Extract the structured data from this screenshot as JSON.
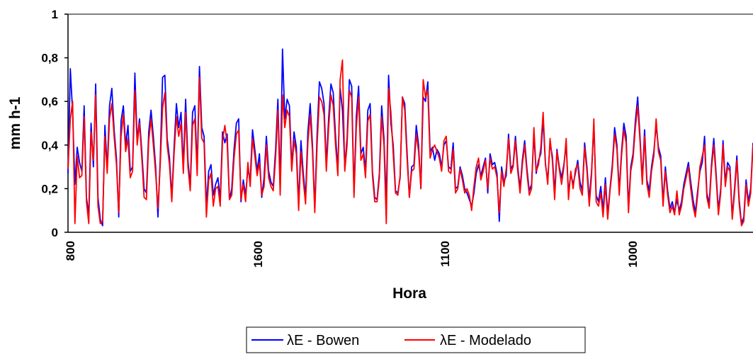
{
  "chart_data": {
    "type": "line",
    "title": "",
    "xlabel": "Hora",
    "ylabel": "mm h-1",
    "ylim": [
      0,
      1
    ],
    "y_ticks": [
      "0",
      "0,2",
      "0,4",
      "0,6",
      "0,8",
      "1"
    ],
    "x_tick_labels": [
      "800",
      "1600",
      "1100",
      "1000"
    ],
    "grid": false,
    "legend": "bottom-center",
    "colors": {
      "bowen": "#0000ff",
      "modelado": "#ff0000"
    },
    "series": [
      {
        "name": "λE - Bowen",
        "values": [
          0.27,
          0.75,
          0.55,
          0.22,
          0.39,
          0.32,
          0.28,
          0.58,
          0.16,
          0.08,
          0.5,
          0.3,
          0.68,
          0.16,
          0.06,
          0.03,
          0.49,
          0.29,
          0.58,
          0.66,
          0.47,
          0.34,
          0.07,
          0.51,
          0.58,
          0.4,
          0.49,
          0.28,
          0.3,
          0.73,
          0.42,
          0.52,
          0.37,
          0.2,
          0.18,
          0.46,
          0.56,
          0.44,
          0.3,
          0.07,
          0.34,
          0.71,
          0.72,
          0.43,
          0.34,
          0.16,
          0.39,
          0.59,
          0.48,
          0.55,
          0.3,
          0.61,
          0.33,
          0.21,
          0.55,
          0.58,
          0.29,
          0.76,
          0.48,
          0.44,
          0.12,
          0.28,
          0.31,
          0.17,
          0.22,
          0.25,
          0.15,
          0.46,
          0.41,
          0.45,
          0.15,
          0.2,
          0.38,
          0.5,
          0.52,
          0.14,
          0.24,
          0.17,
          0.29,
          0.24,
          0.47,
          0.38,
          0.28,
          0.36,
          0.16,
          0.25,
          0.44,
          0.28,
          0.23,
          0.21,
          0.38,
          0.61,
          0.21,
          0.84,
          0.52,
          0.61,
          0.58,
          0.3,
          0.46,
          0.39,
          0.13,
          0.42,
          0.27,
          0.16,
          0.46,
          0.59,
          0.4,
          0.11,
          0.45,
          0.69,
          0.66,
          0.59,
          0.31,
          0.52,
          0.68,
          0.64,
          0.44,
          0.29,
          0.66,
          0.56,
          0.3,
          0.43,
          0.7,
          0.67,
          0.18,
          0.53,
          0.67,
          0.36,
          0.39,
          0.28,
          0.56,
          0.59,
          0.28,
          0.16,
          0.15,
          0.27,
          0.58,
          0.43,
          0.13,
          0.72,
          0.5,
          0.4,
          0.19,
          0.18,
          0.25,
          0.62,
          0.59,
          0.37,
          0.16,
          0.3,
          0.31,
          0.49,
          0.4,
          0.2,
          0.62,
          0.6,
          0.69,
          0.37,
          0.39,
          0.33,
          0.38,
          0.36,
          0.3,
          0.4,
          0.42,
          0.3,
          0.29,
          0.41,
          0.2,
          0.21,
          0.3,
          0.26,
          0.2,
          0.18,
          0.15,
          0.12,
          0.18,
          0.27,
          0.31,
          0.26,
          0.3,
          0.34,
          0.18,
          0.36,
          0.31,
          0.32,
          0.27,
          0.05,
          0.3,
          0.23,
          0.26,
          0.45,
          0.29,
          0.31,
          0.44,
          0.3,
          0.2,
          0.33,
          0.42,
          0.29,
          0.19,
          0.22,
          0.45,
          0.27,
          0.33,
          0.36,
          0.52,
          0.31,
          0.24,
          0.41,
          0.35,
          0.18,
          0.38,
          0.3,
          0.25,
          0.31,
          0.4,
          0.18,
          0.27,
          0.22,
          0.27,
          0.33,
          0.23,
          0.19,
          0.41,
          0.3,
          0.15,
          0.28,
          0.49,
          0.17,
          0.14,
          0.21,
          0.1,
          0.25,
          0.08,
          0.2,
          0.31,
          0.48,
          0.4,
          0.19,
          0.37,
          0.5,
          0.44,
          0.11,
          0.3,
          0.36,
          0.51,
          0.62,
          0.44,
          0.24,
          0.47,
          0.24,
          0.19,
          0.3,
          0.37,
          0.49,
          0.39,
          0.35,
          0.14,
          0.3,
          0.19,
          0.11,
          0.14,
          0.09,
          0.15,
          0.1,
          0.14,
          0.22,
          0.27,
          0.32,
          0.23,
          0.15,
          0.09,
          0.19,
          0.28,
          0.32,
          0.44,
          0.18,
          0.13,
          0.31,
          0.43,
          0.27,
          0.1,
          0.2,
          0.42,
          0.23,
          0.32,
          0.3,
          0.07,
          0.2,
          0.35,
          0.15,
          0.04,
          0.07,
          0.24,
          0.14,
          0.2,
          0.41
        ]
      },
      {
        "name": "λE - Modelado",
        "values": [
          0.29,
          0.52,
          0.6,
          0.04,
          0.35,
          0.25,
          0.26,
          0.53,
          0.14,
          0.04,
          0.46,
          0.33,
          0.63,
          0.12,
          0.04,
          0.05,
          0.44,
          0.27,
          0.52,
          0.59,
          0.44,
          0.31,
          0.09,
          0.44,
          0.54,
          0.37,
          0.43,
          0.25,
          0.28,
          0.65,
          0.4,
          0.5,
          0.34,
          0.16,
          0.15,
          0.42,
          0.52,
          0.4,
          0.27,
          0.11,
          0.31,
          0.57,
          0.64,
          0.4,
          0.31,
          0.14,
          0.36,
          0.53,
          0.44,
          0.5,
          0.27,
          0.55,
          0.3,
          0.19,
          0.49,
          0.52,
          0.26,
          0.71,
          0.43,
          0.41,
          0.07,
          0.24,
          0.27,
          0.12,
          0.2,
          0.21,
          0.12,
          0.42,
          0.49,
          0.41,
          0.15,
          0.17,
          0.34,
          0.45,
          0.47,
          0.15,
          0.22,
          0.14,
          0.32,
          0.21,
          0.43,
          0.35,
          0.26,
          0.32,
          0.17,
          0.21,
          0.4,
          0.25,
          0.21,
          0.19,
          0.34,
          0.56,
          0.17,
          0.63,
          0.48,
          0.56,
          0.53,
          0.28,
          0.42,
          0.36,
          0.1,
          0.37,
          0.24,
          0.13,
          0.41,
          0.54,
          0.37,
          0.09,
          0.4,
          0.62,
          0.6,
          0.54,
          0.28,
          0.48,
          0.63,
          0.58,
          0.4,
          0.26,
          0.7,
          0.79,
          0.28,
          0.4,
          0.65,
          0.62,
          0.16,
          0.48,
          0.62,
          0.33,
          0.36,
          0.25,
          0.51,
          0.54,
          0.26,
          0.14,
          0.14,
          0.25,
          0.53,
          0.4,
          0.04,
          0.66,
          0.55,
          0.36,
          0.18,
          0.17,
          0.26,
          0.62,
          0.56,
          0.34,
          0.16,
          0.28,
          0.29,
          0.45,
          0.37,
          0.2,
          0.7,
          0.62,
          0.65,
          0.34,
          0.38,
          0.4,
          0.37,
          0.34,
          0.28,
          0.42,
          0.44,
          0.28,
          0.27,
          0.38,
          0.18,
          0.2,
          0.29,
          0.24,
          0.18,
          0.2,
          0.17,
          0.1,
          0.21,
          0.3,
          0.34,
          0.24,
          0.28,
          0.33,
          0.2,
          0.34,
          0.29,
          0.3,
          0.25,
          0.09,
          0.28,
          0.21,
          0.29,
          0.43,
          0.27,
          0.3,
          0.42,
          0.28,
          0.18,
          0.31,
          0.4,
          0.27,
          0.17,
          0.2,
          0.48,
          0.28,
          0.31,
          0.39,
          0.55,
          0.32,
          0.22,
          0.43,
          0.33,
          0.15,
          0.37,
          0.29,
          0.22,
          0.3,
          0.43,
          0.15,
          0.28,
          0.2,
          0.29,
          0.31,
          0.2,
          0.17,
          0.39,
          0.28,
          0.12,
          0.26,
          0.52,
          0.14,
          0.12,
          0.18,
          0.07,
          0.22,
          0.06,
          0.19,
          0.29,
          0.45,
          0.38,
          0.17,
          0.35,
          0.47,
          0.41,
          0.09,
          0.28,
          0.34,
          0.48,
          0.58,
          0.42,
          0.22,
          0.44,
          0.22,
          0.16,
          0.28,
          0.35,
          0.52,
          0.37,
          0.33,
          0.12,
          0.28,
          0.17,
          0.09,
          0.12,
          0.08,
          0.19,
          0.08,
          0.12,
          0.2,
          0.25,
          0.3,
          0.2,
          0.12,
          0.07,
          0.17,
          0.3,
          0.35,
          0.4,
          0.16,
          0.11,
          0.29,
          0.4,
          0.25,
          0.08,
          0.18,
          0.4,
          0.21,
          0.3,
          0.28,
          0.06,
          0.18,
          0.33,
          0.13,
          0.03,
          0.05,
          0.22,
          0.12,
          0.18,
          0.4
        ]
      }
    ]
  }
}
